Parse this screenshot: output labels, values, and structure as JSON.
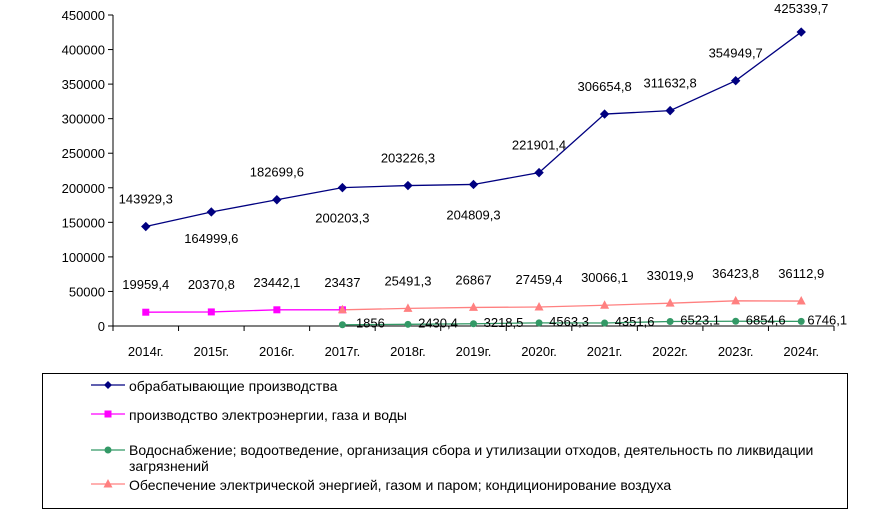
{
  "chart_data": {
    "type": "line",
    "categories": [
      "2014г.",
      "2015г.",
      "2016г.",
      "2017г.",
      "2018г.",
      "2019г.",
      "2020г.",
      "2021г.",
      "2022г.",
      "2023г.",
      "2024г."
    ],
    "ylim": [
      0,
      450000
    ],
    "yticks": [
      "0",
      "50000",
      "100000",
      "150000",
      "200000",
      "250000",
      "300000",
      "350000",
      "400000",
      "450000"
    ],
    "grid": false,
    "legend_position": "bottom",
    "series": [
      {
        "name": "обрабатывающие производства",
        "color": "#000080",
        "marker": "diamond",
        "values": [
          143929.3,
          164999.6,
          182699.6,
          200203.3,
          203226.3,
          204809.3,
          221901.4,
          306654.8,
          311632.8,
          354949.7,
          425339.7
        ],
        "labels": [
          "143929,3",
          "164999,6",
          "182699,6",
          "200203,3",
          "203226,3",
          "204809,3",
          "221901,4",
          "306654,8",
          "311632,8",
          "354949,7",
          "425339,7"
        ]
      },
      {
        "name": "производство электроэнергии, газа и воды",
        "color": "#ff00ff",
        "marker": "square",
        "values": [
          19959.4,
          20370.8,
          23442.1,
          23437,
          null,
          null,
          null,
          null,
          null,
          null,
          null
        ],
        "labels": [
          "19959,4",
          "20370,8",
          "23442,1",
          "23437",
          null,
          null,
          null,
          null,
          null,
          null,
          null
        ]
      },
      {
        "name": "Водоснабжение; водоотведение, организация сбора и утилизации отходов, деятельность по ликвидации загрязнений",
        "color": "#339966",
        "marker": "circle",
        "values": [
          null,
          null,
          null,
          1856,
          2430.4,
          3218.5,
          4563.3,
          4351.6,
          6523.1,
          6854.6,
          6746.1
        ],
        "labels": [
          null,
          null,
          null,
          "1856",
          "2430,4",
          "3218,5",
          "4563,3",
          "4351,6",
          "6523,1",
          "6854,6",
          "6746,1"
        ]
      },
      {
        "name": "Обеспечение электрической энергией, газом и паром; кондиционирование воздуха",
        "color": "#ff8080",
        "marker": "triangle",
        "values": [
          null,
          null,
          null,
          23437,
          25491.3,
          26867,
          27459.4,
          30066.1,
          33019.9,
          36423.8,
          36112.9
        ],
        "labels": [
          null,
          null,
          null,
          null,
          "25491,3",
          "26867",
          "27459,4",
          "30066,1",
          "33019,9",
          "36423,8",
          "36112,9"
        ]
      }
    ]
  }
}
